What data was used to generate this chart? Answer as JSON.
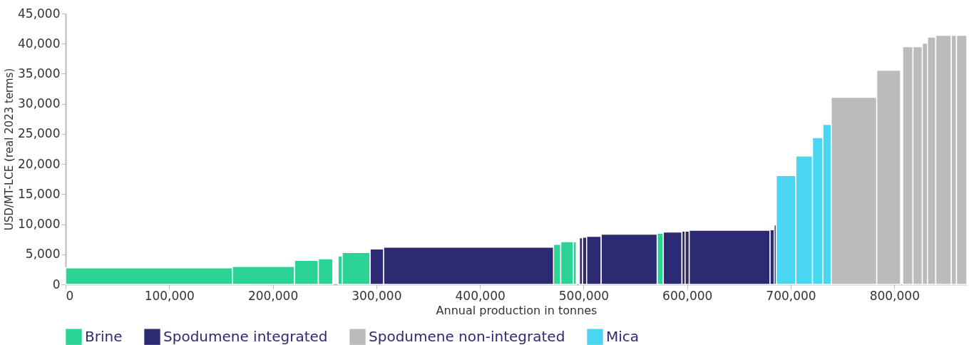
{
  "chart_data": {
    "type": "histogram",
    "xlabel": "Annual production in tonnes",
    "ylabel": "USD/MT-LCE (real 2023 terms)",
    "bins": [
      0,
      161000,
      221000,
      244000,
      258000,
      263000,
      267000,
      294000,
      307000,
      471000,
      478000,
      490000,
      493000,
      496000,
      499000,
      503000,
      517000,
      571000,
      577000,
      595000,
      598000,
      602000,
      680000,
      684000,
      686000,
      705000,
      721000,
      731000,
      739000,
      783000,
      806000,
      808000,
      818000,
      827000,
      832000,
      840000,
      855000,
      860000,
      870000
    ],
    "series": [
      {
        "name": "Brine",
        "color": "#2bd494",
        "values": [
          2750,
          3000,
          4000,
          4250,
          null,
          4750,
          5300,
          null,
          null,
          6650,
          7100,
          7100,
          null,
          null,
          null,
          null,
          null,
          8500,
          null,
          null,
          null,
          null,
          null,
          null,
          null,
          null,
          null,
          null,
          null,
          null,
          null,
          null,
          null,
          null,
          null,
          null,
          null,
          null
        ]
      },
      {
        "name": "Spodumene integrated",
        "color": "#2c2a72",
        "values": [
          null,
          null,
          null,
          null,
          null,
          null,
          null,
          5900,
          6200,
          null,
          null,
          null,
          null,
          7750,
          7850,
          8000,
          8350,
          null,
          8700,
          8850,
          8850,
          9000,
          9100,
          9900,
          null,
          null,
          null,
          null,
          null,
          null,
          null,
          null,
          null,
          null,
          null,
          null,
          null,
          null
        ]
      },
      {
        "name": "Spodumene non-integrated",
        "color": "#bbbbbb",
        "values": [
          null,
          null,
          null,
          null,
          null,
          null,
          null,
          null,
          null,
          null,
          null,
          null,
          null,
          null,
          null,
          null,
          null,
          null,
          null,
          null,
          null,
          null,
          null,
          null,
          null,
          null,
          null,
          null,
          31100,
          35600,
          null,
          39500,
          39500,
          40100,
          41100,
          41400,
          41400,
          41400
        ]
      },
      {
        "name": "Mica",
        "color": "#4ad6f0",
        "values": [
          null,
          null,
          null,
          null,
          null,
          null,
          null,
          null,
          null,
          null,
          null,
          null,
          null,
          null,
          null,
          null,
          null,
          null,
          null,
          null,
          null,
          null,
          null,
          null,
          18100,
          21350,
          24400,
          26600,
          null,
          null,
          null,
          null,
          null,
          null,
          null,
          null,
          null,
          null
        ]
      }
    ],
    "xlim": [
      0,
      870000
    ],
    "xticks": [
      0,
      {
        "value": 100000,
        "label": "100,000"
      },
      {
        "value": 200000,
        "label": "200,000"
      },
      {
        "value": 300000,
        "label": "300,000"
      },
      {
        "value": 400000,
        "label": "400,000"
      },
      {
        "value": 500000,
        "label": "500,000"
      },
      {
        "value": 600000,
        "label": "600,000"
      },
      {
        "value": 700000,
        "label": "700,000"
      },
      {
        "value": 800000,
        "label": "800,000"
      }
    ],
    "ylim": [
      0,
      45000
    ],
    "yticks": [
      0,
      {
        "value": 5000,
        "label": "5,000"
      },
      {
        "value": 10000,
        "label": "10,000"
      },
      {
        "value": 15000,
        "label": "15,000"
      },
      {
        "value": 20000,
        "label": "20,000"
      },
      {
        "value": 25000,
        "label": "25,000"
      },
      {
        "value": 30000,
        "label": "30,000"
      },
      {
        "value": 35000,
        "label": "35,000"
      },
      {
        "value": 40000,
        "label": "40,000"
      },
      {
        "value": 45000,
        "label": "45,000"
      }
    ],
    "grid": false,
    "legend": "bottom"
  }
}
